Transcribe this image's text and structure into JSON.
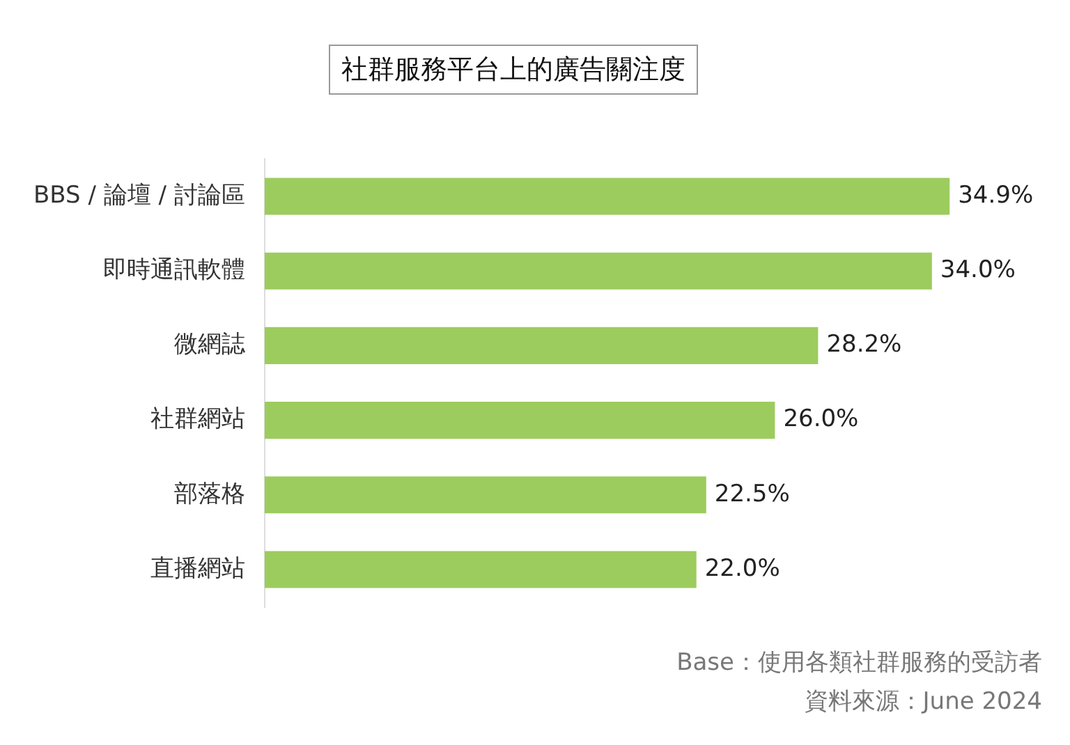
{
  "chart_data": {
    "type": "bar",
    "orientation": "horizontal",
    "title": "社群服務平台上的廣告關注度",
    "categories": [
      "BBS / 論壇 / 討論區",
      "即時通訊軟體",
      "微網誌",
      "社群網站",
      "部落格",
      "直播網站"
    ],
    "values": [
      34.9,
      34.0,
      28.2,
      26.0,
      22.5,
      22.0
    ],
    "value_labels": [
      "34.9%",
      "34.0%",
      "28.2%",
      "26.0%",
      "22.5%",
      "22.0%"
    ],
    "color": "#9ccc5e",
    "legend": false,
    "annotations": [
      "Base：使用各類社群服務的受訪者",
      "資料來源：June 2024"
    ]
  }
}
